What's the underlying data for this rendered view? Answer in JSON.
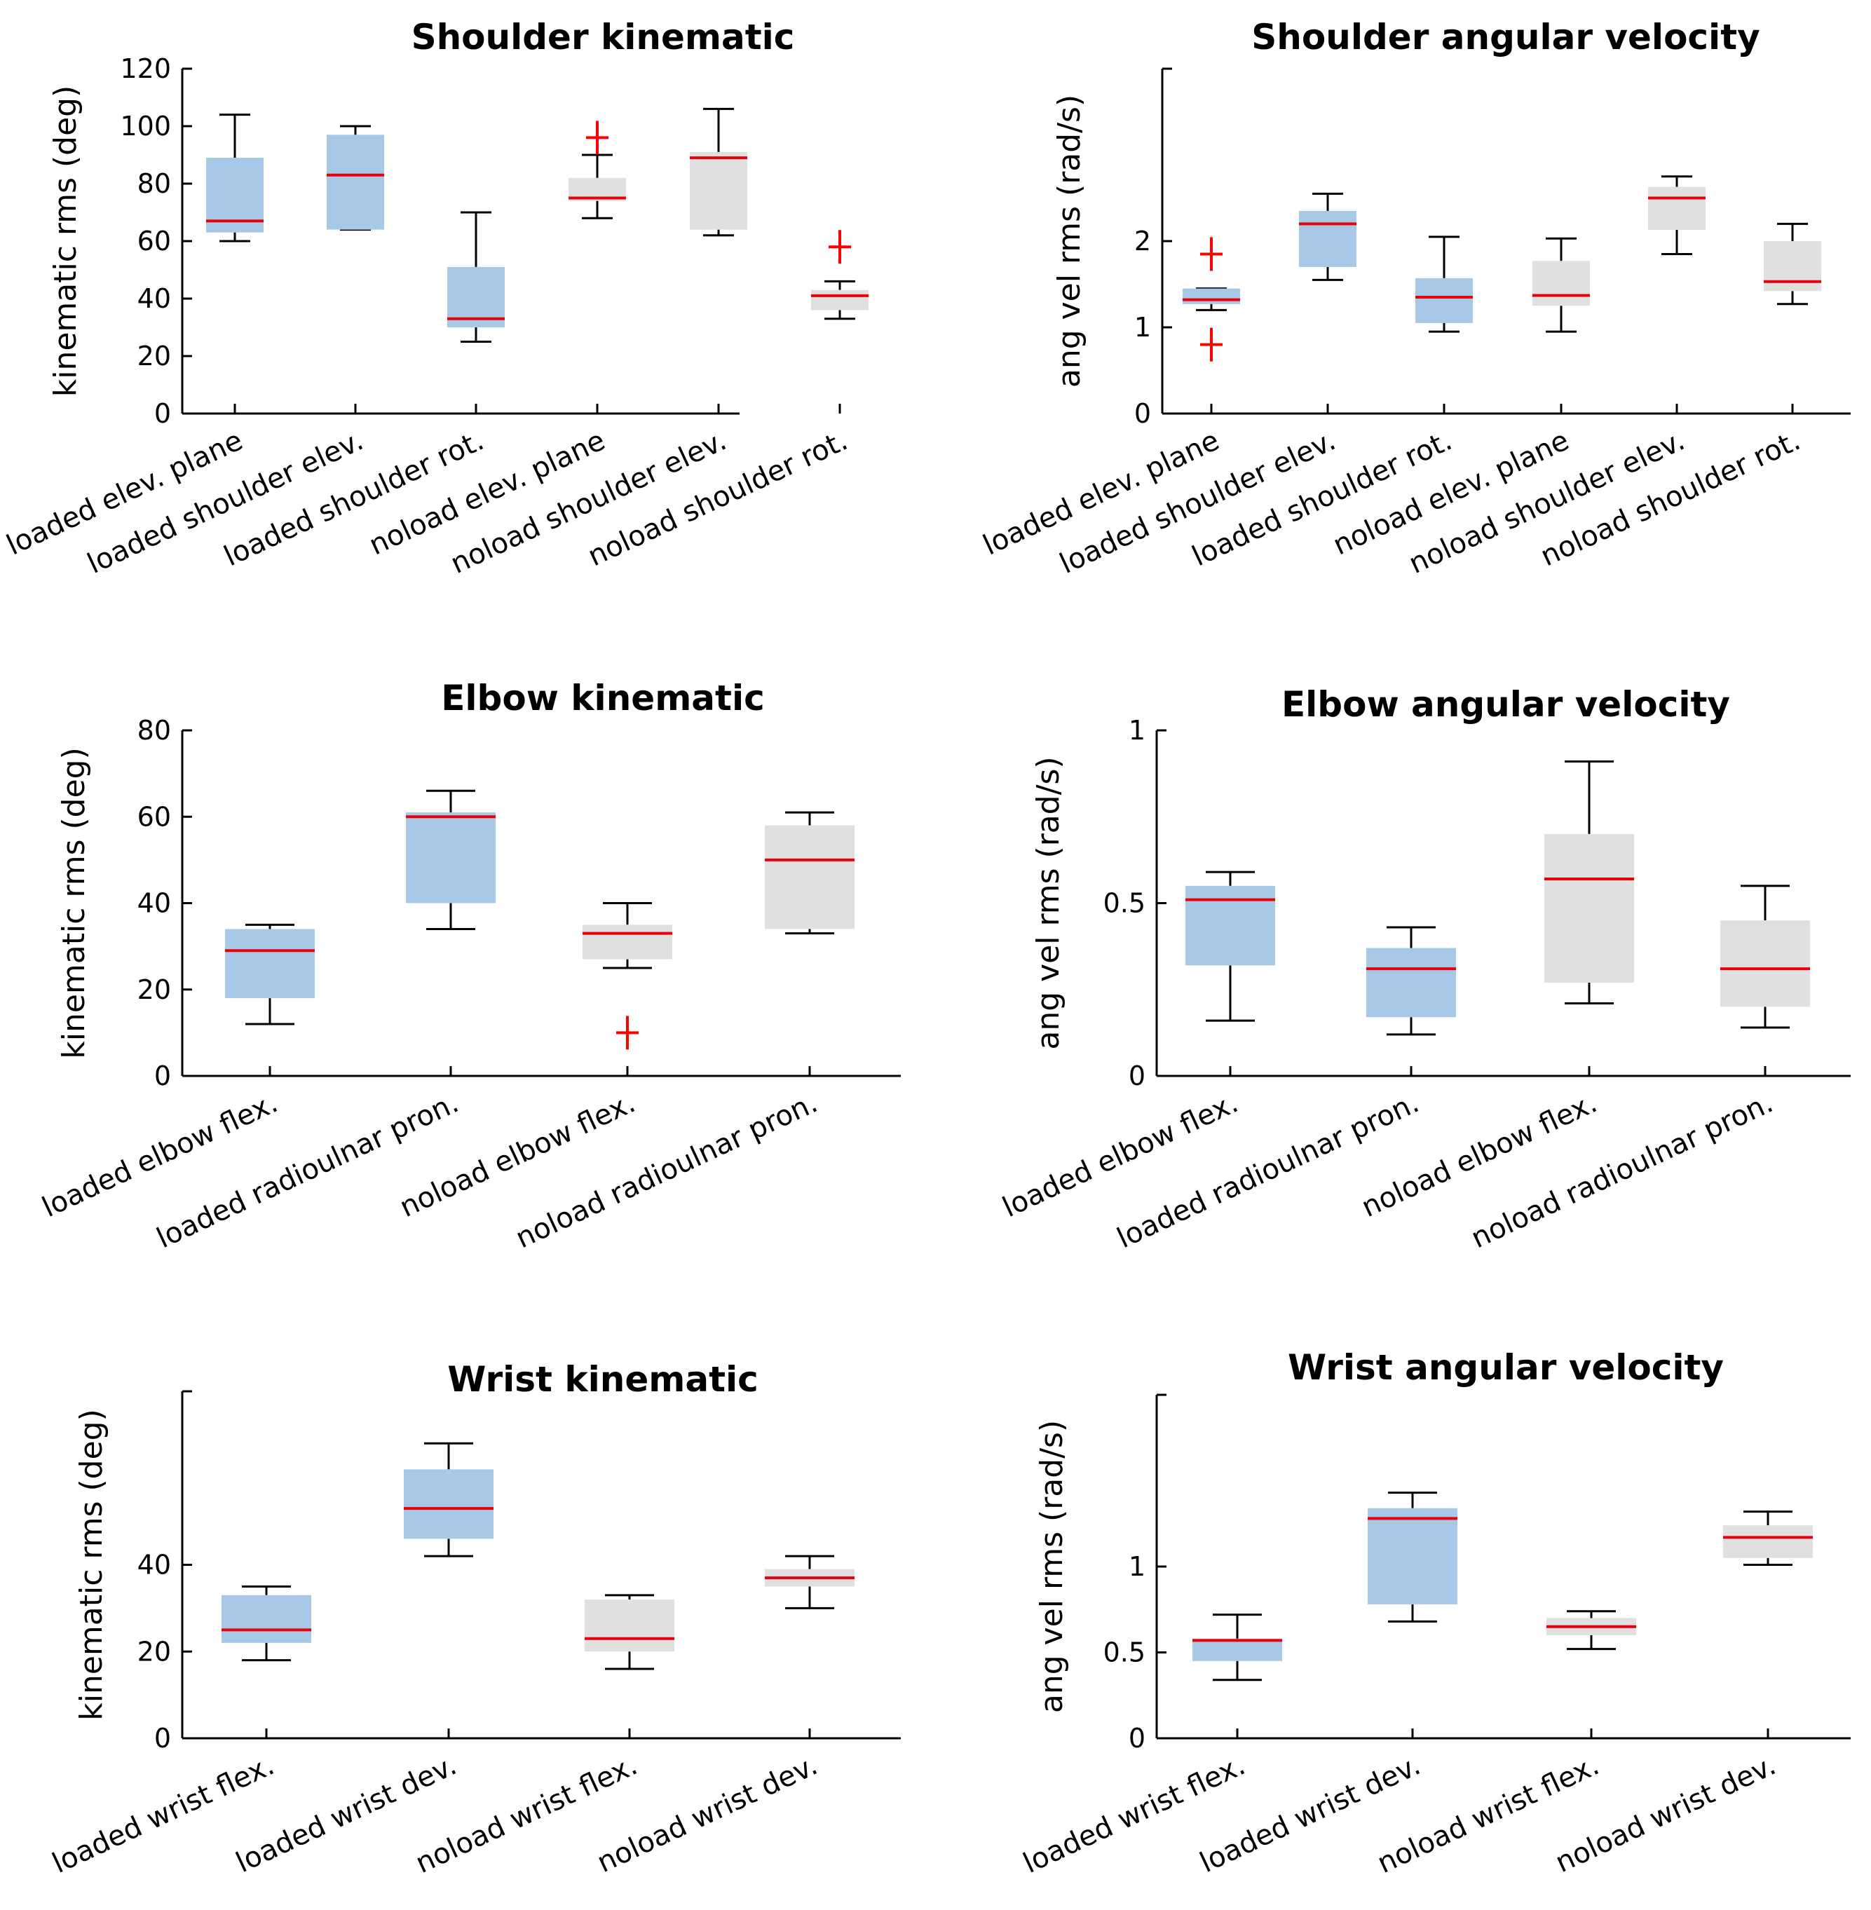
{
  "figure": {
    "title": "Upper limb kinematics and angular velocity box plots"
  },
  "colors": {
    "loaded": "#a8c8e8",
    "noload": "#e0e0e0",
    "median": "#e8000b",
    "outlier": "#ff0000",
    "ink": "#000000"
  },
  "chart_data": [
    {
      "type": "box",
      "title": "Shoulder kinematic",
      "ylabel": "kinematic rms (deg)",
      "xlabel": "",
      "ylim": [
        0,
        120
      ],
      "yticks": [
        0,
        20,
        40,
        60,
        80,
        100,
        120
      ],
      "categories": [
        "loaded elev. plane",
        "loaded shoulder elev.",
        "loaded shoulder rot.",
        "noload elev. plane",
        "noload shoulder elev.",
        "noload shoulder rot."
      ],
      "groups": [
        "loaded",
        "loaded",
        "loaded",
        "noload",
        "noload",
        "noload"
      ],
      "boxes": [
        {
          "min": 60,
          "q1": 63,
          "median": 67,
          "q3": 89,
          "max": 104,
          "outliers": []
        },
        {
          "min": 64,
          "q1": 64,
          "median": 83,
          "q3": 97,
          "max": 100,
          "outliers": []
        },
        {
          "min": 25,
          "q1": 30,
          "median": 33,
          "q3": 51,
          "max": 70,
          "outliers": []
        },
        {
          "min": 68,
          "q1": 74,
          "median": 75,
          "q3": 82,
          "max": 90,
          "outliers": [
            96
          ]
        },
        {
          "min": 62,
          "q1": 64,
          "median": 89,
          "q3": 91,
          "max": 106,
          "outliers": []
        },
        {
          "min": 33,
          "q1": 36,
          "median": 41,
          "q3": 43,
          "max": 46,
          "outliers": [
            58
          ]
        }
      ]
    },
    {
      "type": "box",
      "title": "Shoulder angular velocity",
      "ylabel": "ang vel rms (rad/s)",
      "xlabel": "",
      "ylim": [
        0,
        4
      ],
      "yticks": [
        0,
        1,
        2
      ],
      "categories": [
        "loaded elev. plane",
        "loaded shoulder elev.",
        "loaded shoulder rot.",
        "noload elev. plane",
        "noload shoulder elev.",
        "noload shoulder rot."
      ],
      "groups": [
        "loaded",
        "loaded",
        "loaded",
        "noload",
        "noload",
        "noload"
      ],
      "boxes": [
        {
          "min": 1.2,
          "q1": 1.27,
          "median": 1.32,
          "q3": 1.45,
          "max": 1.45,
          "outliers": [
            1.85,
            0.8
          ]
        },
        {
          "min": 1.55,
          "q1": 1.7,
          "median": 2.2,
          "q3": 2.35,
          "max": 2.55,
          "outliers": []
        },
        {
          "min": 0.95,
          "q1": 1.05,
          "median": 1.35,
          "q3": 1.57,
          "max": 2.05,
          "outliers": []
        },
        {
          "min": 0.95,
          "q1": 1.25,
          "median": 1.37,
          "q3": 1.77,
          "max": 2.03,
          "outliers": []
        },
        {
          "min": 1.85,
          "q1": 2.13,
          "median": 2.5,
          "q3": 2.63,
          "max": 2.75,
          "outliers": []
        },
        {
          "min": 1.27,
          "q1": 1.42,
          "median": 1.53,
          "q3": 2.0,
          "max": 2.2,
          "outliers": []
        }
      ]
    },
    {
      "type": "box",
      "title": "Elbow kinematic",
      "ylabel": "kinematic rms (deg)",
      "xlabel": "",
      "ylim": [
        0,
        80
      ],
      "yticks": [
        0,
        20,
        40,
        60,
        80
      ],
      "categories": [
        "loaded elbow flex.",
        "loaded radioulnar pron.",
        "noload elbow flex.",
        "noload radioulnar pron."
      ],
      "groups": [
        "loaded",
        "loaded",
        "noload",
        "noload"
      ],
      "boxes": [
        {
          "min": 12,
          "q1": 18,
          "median": 29,
          "q3": 34,
          "max": 35,
          "outliers": []
        },
        {
          "min": 34,
          "q1": 40,
          "median": 60,
          "q3": 61,
          "max": 66,
          "outliers": []
        },
        {
          "min": 25,
          "q1": 27,
          "median": 33,
          "q3": 35,
          "max": 40,
          "outliers": [
            10
          ]
        },
        {
          "min": 33,
          "q1": 34,
          "median": 50,
          "q3": 58,
          "max": 61,
          "outliers": []
        }
      ]
    },
    {
      "type": "box",
      "title": "Elbow angular velocity",
      "ylabel": "ang vel rms (rad/s)",
      "xlabel": "",
      "ylim": [
        0,
        1
      ],
      "yticks": [
        0,
        0.5,
        1
      ],
      "categories": [
        "loaded elbow flex.",
        "loaded radioulnar pron.",
        "noload elbow flex.",
        "noload radioulnar pron."
      ],
      "groups": [
        "loaded",
        "loaded",
        "noload",
        "noload"
      ],
      "boxes": [
        {
          "min": 0.16,
          "q1": 0.32,
          "median": 0.51,
          "q3": 0.55,
          "max": 0.59,
          "outliers": []
        },
        {
          "min": 0.12,
          "q1": 0.17,
          "median": 0.31,
          "q3": 0.37,
          "max": 0.43,
          "outliers": []
        },
        {
          "min": 0.21,
          "q1": 0.27,
          "median": 0.57,
          "q3": 0.7,
          "max": 0.91,
          "outliers": []
        },
        {
          "min": 0.14,
          "q1": 0.2,
          "median": 0.31,
          "q3": 0.45,
          "max": 0.55,
          "outliers": []
        }
      ]
    },
    {
      "type": "box",
      "title": "Wrist kinematic",
      "ylabel": "kinematic rms (deg)",
      "xlabel": "",
      "ylim": [
        0,
        80
      ],
      "yticks": [
        0,
        20,
        40
      ],
      "categories": [
        "loaded wrist flex.",
        "loaded wrist dev.",
        "noload wrist flex.",
        "noload wrist dev."
      ],
      "groups": [
        "loaded",
        "loaded",
        "noload",
        "noload"
      ],
      "boxes": [
        {
          "min": 18,
          "q1": 22,
          "median": 25,
          "q3": 33,
          "max": 35,
          "outliers": []
        },
        {
          "min": 42,
          "q1": 46,
          "median": 53,
          "q3": 62,
          "max": 68,
          "outliers": []
        },
        {
          "min": 16,
          "q1": 20,
          "median": 23,
          "q3": 32,
          "max": 33,
          "outliers": []
        },
        {
          "min": 30,
          "q1": 35,
          "median": 37,
          "q3": 39,
          "max": 42,
          "outliers": []
        }
      ]
    },
    {
      "type": "box",
      "title": "Wrist angular velocity",
      "ylabel": "ang vel rms (rad/s)",
      "xlabel": "",
      "ylim": [
        0,
        2
      ],
      "yticks": [
        0,
        0.5,
        1
      ],
      "categories": [
        "loaded wrist flex.",
        "loaded wrist dev.",
        "noload wrist flex.",
        "noload wrist dev."
      ],
      "groups": [
        "loaded",
        "loaded",
        "noload",
        "noload"
      ],
      "boxes": [
        {
          "min": 0.34,
          "q1": 0.45,
          "median": 0.57,
          "q3": 0.58,
          "max": 0.72,
          "outliers": []
        },
        {
          "min": 0.68,
          "q1": 0.78,
          "median": 1.28,
          "q3": 1.34,
          "max": 1.43,
          "outliers": []
        },
        {
          "min": 0.52,
          "q1": 0.6,
          "median": 0.65,
          "q3": 0.7,
          "max": 0.74,
          "outliers": []
        },
        {
          "min": 1.01,
          "q1": 1.05,
          "median": 1.17,
          "q3": 1.24,
          "max": 1.32,
          "outliers": []
        }
      ]
    }
  ]
}
